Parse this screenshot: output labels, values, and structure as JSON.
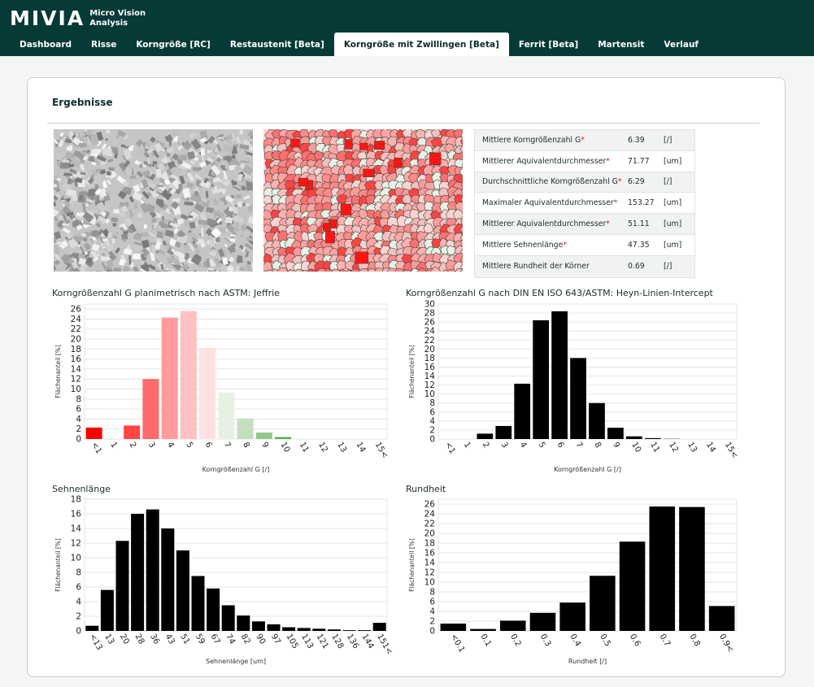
{
  "app": {
    "logo_word": "MIVIA",
    "logo_line1": "Micro Vision",
    "logo_line2": "Analysis"
  },
  "tabs": [
    {
      "label": "Dashboard",
      "active": false
    },
    {
      "label": "Risse",
      "active": false
    },
    {
      "label": "Korngröße [RC]",
      "active": false
    },
    {
      "label": "Restaustenit [Beta]",
      "active": false
    },
    {
      "label": "Korngröße mit Zwillingen [Beta]",
      "active": true
    },
    {
      "label": "Ferrit [Beta]",
      "active": false
    },
    {
      "label": "Martensit",
      "active": false
    },
    {
      "label": "Verlauf",
      "active": false
    }
  ],
  "results": {
    "title": "Ergebnisse",
    "stats": [
      {
        "label": "Mittlere Korngrößenzahl G",
        "required": true,
        "value": "6.39",
        "unit": "[/]"
      },
      {
        "label": "Mittlerer Äquivalentdurchmesser",
        "required": true,
        "value": "71.77",
        "unit": "[um]"
      },
      {
        "label": "Durchschnittliche Korngrößenzahl G",
        "required": true,
        "value": "6.29",
        "unit": "[/]"
      },
      {
        "label": "Maximaler Äquivalentdurchmesser",
        "required": true,
        "value": "153.27",
        "unit": "[um]"
      },
      {
        "label": "Mittlerer Äquivalentdurchmesser",
        "required": true,
        "value": "51.11",
        "unit": "[um]"
      },
      {
        "label": "Mittlere Sehnenlänge",
        "required": true,
        "value": "47.35",
        "unit": "[um]"
      },
      {
        "label": "Mittlere Rundheit der Körner",
        "required": false,
        "value": "0.69",
        "unit": "[/]"
      }
    ]
  },
  "colors": {
    "header_bg": "#063a37",
    "grid": "#e3e6e6",
    "bar_black": "#000000",
    "required_marker": "#d11a1a"
  },
  "chart_data": [
    {
      "id": "chart1",
      "type": "bar",
      "title": "Korngrößenzahl G planimetrisch nach ASTM: Jeffrie",
      "xlabel": "Korngrößenzahl G [/]",
      "ylabel": "Flächenanteil [%]",
      "ylim": [
        0,
        27
      ],
      "yticks": [
        0,
        2,
        4,
        6,
        8,
        10,
        12,
        14,
        16,
        18,
        20,
        22,
        24,
        26
      ],
      "grid": true,
      "categories": [
        "<1",
        "1",
        "2",
        "3",
        "4",
        "5",
        "6",
        "7",
        "8",
        "9",
        "10",
        "11",
        "12",
        "13",
        "14",
        "15<"
      ],
      "values": [
        2.3,
        0,
        2.7,
        12,
        24.3,
        25.6,
        18.2,
        9.3,
        4.1,
        1.3,
        0.4,
        0,
        0,
        0,
        0,
        0
      ],
      "colors": [
        "#ff0000",
        "#ff2020",
        "#ff4646",
        "#ff6a6a",
        "#ff9b9b",
        "#ffc1c1",
        "#ffe1e1",
        "#e6f1e4",
        "#c4dfbf",
        "#93c78a",
        "#5aaf53",
        "#3f9c3b",
        "#2b8a2b",
        "#1f7a1f",
        "#156d15",
        "#0b5f0b"
      ]
    },
    {
      "id": "chart2",
      "type": "bar",
      "title": "Korngrößenzahl G nach DIN EN ISO 643/ASTM: Heyn-Linien-Intercept",
      "xlabel": "Korngrößenzahl G [/]",
      "ylabel": "Flächenanteil [%]",
      "ylim": [
        0,
        30
      ],
      "yticks": [
        0,
        2,
        4,
        6,
        8,
        10,
        12,
        14,
        16,
        18,
        20,
        22,
        24,
        26,
        28,
        30
      ],
      "grid": true,
      "categories": [
        "<1",
        "1",
        "2",
        "3",
        "4",
        "5",
        "6",
        "7",
        "8",
        "9",
        "10",
        "11",
        "12",
        "13",
        "14",
        "15<"
      ],
      "values": [
        0,
        0,
        1.2,
        2.9,
        12.3,
        26.4,
        28.4,
        18,
        8,
        2.5,
        0.6,
        0.2,
        0.05,
        0,
        0,
        0
      ]
    },
    {
      "id": "chart3",
      "type": "bar",
      "title": "Sehnenlänge",
      "xlabel": "Sehnenlänge [um]",
      "ylabel": "Flächenanteil [%]",
      "ylim": [
        0,
        18
      ],
      "yticks": [
        0,
        2,
        4,
        6,
        8,
        10,
        12,
        14,
        16,
        18
      ],
      "grid": true,
      "categories": [
        "<13",
        "13",
        "20",
        "28",
        "36",
        "43",
        "51",
        "59",
        "67",
        "74",
        "82",
        "90",
        "97",
        "105",
        "113",
        "121",
        "128",
        "136",
        "144",
        "151<"
      ],
      "values": [
        0.7,
        5.6,
        12.3,
        16,
        16.6,
        14,
        11,
        7.5,
        5.8,
        3.5,
        2.1,
        1.3,
        0.9,
        0.5,
        0.4,
        0.3,
        0.2,
        0.1,
        0.1,
        1.1
      ]
    },
    {
      "id": "chart4",
      "type": "bar",
      "title": "Rundheit",
      "xlabel": "Rundheit [/]",
      "ylabel": "Flächenanteil [%]",
      "ylim": [
        0,
        27
      ],
      "yticks": [
        0,
        2,
        4,
        6,
        8,
        10,
        12,
        14,
        16,
        18,
        20,
        22,
        24,
        26
      ],
      "grid": true,
      "categories": [
        "<0.1",
        "0.1",
        "0.2",
        "0.3",
        "0.4",
        "0.5",
        "0.6",
        "0.7",
        "0.8",
        "0.9<"
      ],
      "values": [
        1.5,
        0.4,
        2.1,
        3.7,
        5.8,
        11.3,
        18.3,
        25.5,
        25.4,
        5.1
      ]
    }
  ]
}
